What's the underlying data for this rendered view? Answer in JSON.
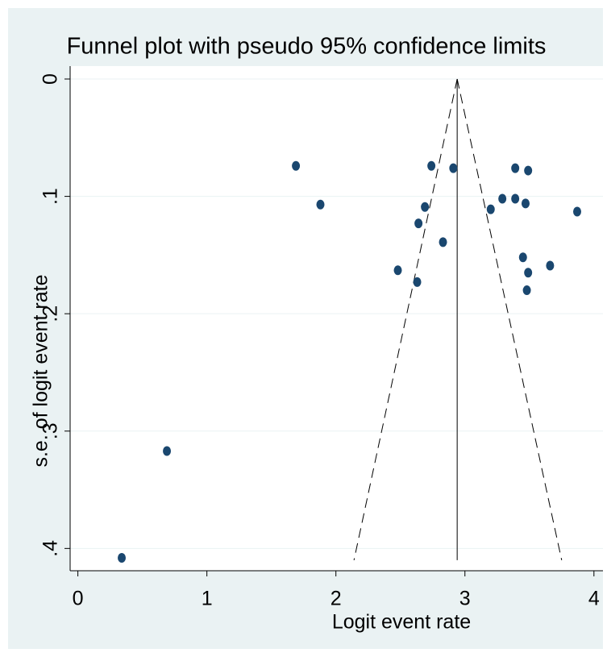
{
  "chart_data": {
    "type": "scatter",
    "title": "Funnel plot with pseudo 95% confidence limits",
    "xlabel": "Logit event rate",
    "ylabel": "s.e. of logit event rate",
    "x": [
      1.69,
      1.88,
      2.74,
      2.91,
      3.39,
      3.49,
      2.69,
      2.64,
      3.29,
      3.39,
      3.47,
      3.2,
      3.87,
      2.83,
      2.48,
      2.63,
      3.45,
      3.49,
      3.66,
      3.48,
      0.69,
      0.34
    ],
    "values": [
      0.074,
      0.107,
      0.074,
      0.076,
      0.076,
      0.078,
      0.109,
      0.123,
      0.102,
      0.102,
      0.106,
      0.111,
      0.113,
      0.139,
      0.163,
      0.173,
      0.152,
      0.165,
      0.159,
      0.18,
      0.317,
      0.408
    ],
    "color": "#1a476f",
    "funnel": {
      "center": 2.94,
      "se_max": 0.41,
      "lower_at_max": 2.14,
      "upper_at_max": 3.75
    },
    "xlim": [
      -0.06,
      4.07
    ],
    "xticks": [
      0,
      1,
      2,
      3,
      4
    ],
    "ylim": [
      -0.011,
      0.419
    ],
    "y_reversed": true,
    "yticks": [
      0,
      {
        "value": 0.1,
        "label": ".1"
      },
      {
        "value": 0.2,
        "label": ".2"
      },
      {
        "value": 0.3,
        "label": ".3"
      },
      {
        "value": 0.4,
        "label": ".4"
      }
    ],
    "grid": true
  }
}
